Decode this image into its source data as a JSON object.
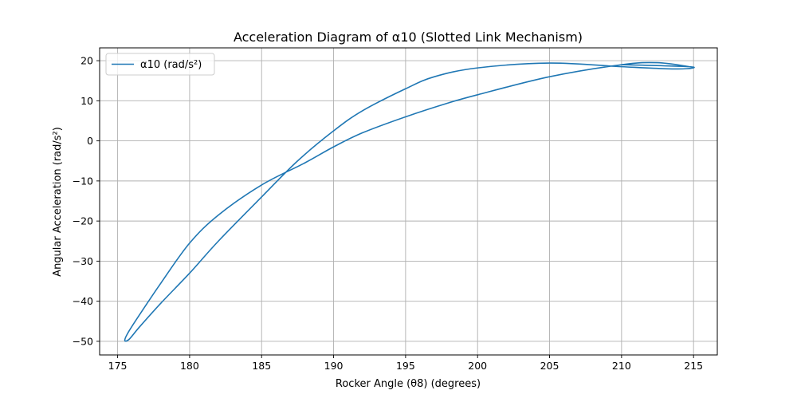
{
  "chart_data": {
    "type": "line",
    "title": "Acceleration Diagram of α10 (Slotted Link Mechanism)",
    "xlabel": "Rocker Angle (θ8) (degrees)",
    "ylabel": "Angular Acceleration (rad/s²)",
    "xlim": [
      173.75,
      216.65
    ],
    "ylim": [
      -53.4,
      23.2
    ],
    "xticks": [
      175,
      180,
      185,
      190,
      195,
      200,
      205,
      210,
      215
    ],
    "yticks": [
      -50,
      -40,
      -30,
      -20,
      -10,
      0,
      10,
      20
    ],
    "grid": true,
    "legend_position": "top-left",
    "series": [
      {
        "name": "α10 (rad/s²)",
        "color": "#1f77b4",
        "x": [
          210.0,
          214.7,
          214.5,
          213.0,
          210.0,
          205.0,
          200.0,
          197.0,
          195.0,
          192.0,
          190.0,
          187.5,
          185.0,
          182.0,
          180.0,
          178.0,
          176.5,
          175.8,
          175.5,
          175.7,
          176.5,
          178.0,
          180.0,
          182.0,
          185.0,
          188.0,
          190.0,
          192.0,
          195.0,
          198.0,
          200.0,
          205.0,
          210.0,
          212.5,
          214.7
        ],
        "y": [
          19.0,
          18.5,
          18.0,
          18.0,
          18.5,
          19.4,
          18.2,
          16.0,
          13.0,
          7.5,
          2.5,
          -5.0,
          -14.0,
          -25.0,
          -33.0,
          -40.5,
          -46.5,
          -49.5,
          -49.8,
          -48.0,
          -43.5,
          -35.5,
          -25.5,
          -18.5,
          -11.0,
          -5.5,
          -1.5,
          2.0,
          6.0,
          9.5,
          11.5,
          16.0,
          19.0,
          19.5,
          18.5
        ]
      }
    ]
  }
}
